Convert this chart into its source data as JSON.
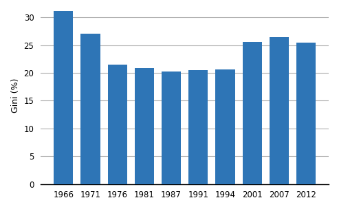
{
  "categories": [
    "1966",
    "1971",
    "1976",
    "1981",
    "1987",
    "1991",
    "1994",
    "2001",
    "2007",
    "2012"
  ],
  "values": [
    31.1,
    27.0,
    21.5,
    20.9,
    20.2,
    20.5,
    20.6,
    25.6,
    26.4,
    25.5
  ],
  "bar_color": "#2e75b6",
  "ylabel": "Gini (%)",
  "ylim": [
    0,
    32
  ],
  "yticks": [
    0,
    5,
    10,
    15,
    20,
    25,
    30
  ],
  "background_color": "#ffffff",
  "grid_color": "#b0b0b0",
  "bar_width": 0.72,
  "tick_fontsize": 8.5,
  "ylabel_fontsize": 9
}
